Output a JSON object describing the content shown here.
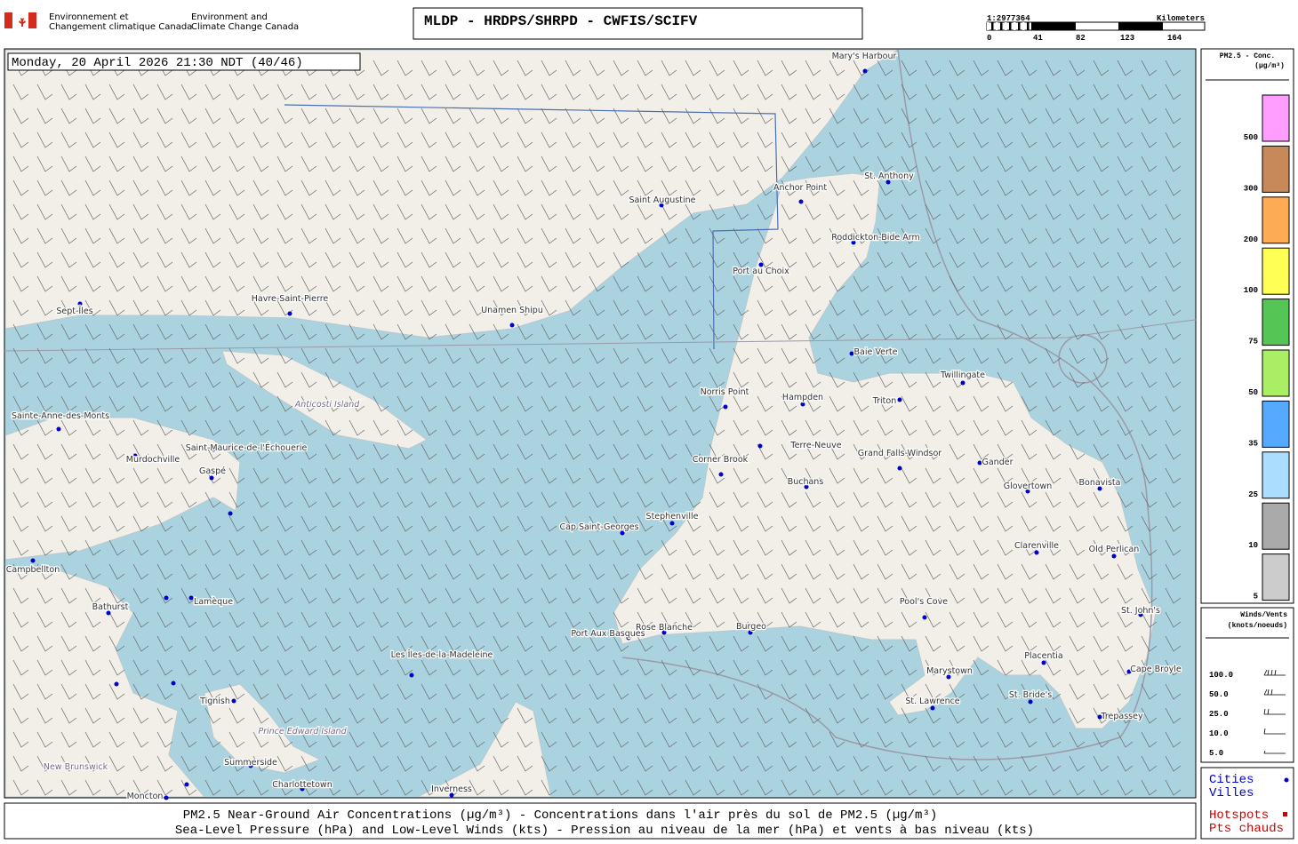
{
  "header": {
    "agency_fr": [
      "Environnement et",
      "Changement climatique Canada"
    ],
    "agency_en": [
      "Environment and",
      "Climate Change Canada"
    ],
    "title": "MLDP - HRDPS/SHRPD - CWFIS/SCIFV"
  },
  "scale": {
    "ratio": "1:2977364",
    "unit": "Kilometers",
    "ticks": [
      0,
      41,
      82,
      123,
      164
    ]
  },
  "map": {
    "timestamp": "Monday, 20 April 2026 21:30 NDT (40/46)",
    "cities": [
      "Mary's Harbour",
      "Saint Augustine",
      "Anchor Point",
      "St. Anthony",
      "Roddickton-Bide Arm",
      "Port au Choix",
      "Sept-Îles",
      "Havre-Saint-Pierre",
      "Unamen Shipu",
      "Baie Verte",
      "Twillingate",
      "Norris Point",
      "Hampden",
      "Triton",
      "Sainte-Anne-des-Monts",
      "Saint-Maurice-de-l'Échouerie",
      "Murdochville",
      "Gaspé",
      "Corner Brook",
      "Grand Falls-Windsor",
      "Gander",
      "Buchans",
      "Glovertown",
      "Bonavista",
      "Stephenville",
      "Cap Saint-Georges",
      "Clarenville",
      "Old Perlican",
      "Campbellton",
      "Lamèque",
      "Bathurst",
      "Pool's Cove",
      "St. John's",
      "Port Aux Basques",
      "Rose Blanche",
      "Burgeo",
      "Les Îles-de-la-Madeleine",
      "Marystown",
      "Placentia",
      "Cape Broyle",
      "Tignish",
      "St. Lawrence",
      "St. Bride's",
      "Trepassey",
      "Summerside",
      "Charlottetown",
      "Inverness",
      "Moncton"
    ],
    "regions": [
      "Anticosti Island",
      "Terre-Neuve",
      "Prince Edward Island",
      "New Brunswick"
    ]
  },
  "legend": {
    "title": [
      "PM2.5 - Conc.",
      "(µg/m³)"
    ],
    "levels": [
      {
        "label": 500,
        "color": "#ff9eff"
      },
      {
        "label": 300,
        "color": "#c8895a"
      },
      {
        "label": 200,
        "color": "#ffaa55"
      },
      {
        "label": 100,
        "color": "#ffff55"
      },
      {
        "label": 75,
        "color": "#55c555"
      },
      {
        "label": 50,
        "color": "#aaee66"
      },
      {
        "label": 35,
        "color": "#55aaff"
      },
      {
        "label": 25,
        "color": "#aaddff"
      },
      {
        "label": 10,
        "color": "#aaaaaa"
      },
      {
        "label": 5,
        "color": "#cccccc"
      }
    ]
  },
  "winds": {
    "title": [
      "Winds/Vents",
      "(knots/noeuds)"
    ],
    "entries": [
      "100.0",
      "50.0",
      "25.0",
      "10.0",
      "5.0"
    ]
  },
  "key": {
    "cities": [
      "Cities",
      "Villes"
    ],
    "hotspots": [
      "Hotspots",
      "Pts chauds"
    ]
  },
  "footer": {
    "line1": "PM2.5 Near-Ground Air Concentrations (µg/m³) - Concentrations dans l'air près du sol de PM2.5 (µg/m³)",
    "line2": "Sea-Level Pressure (hPa) and Low-Level Winds (kts) - Pression au niveau de la mer (hPa) et vents à bas niveau (kts)"
  }
}
